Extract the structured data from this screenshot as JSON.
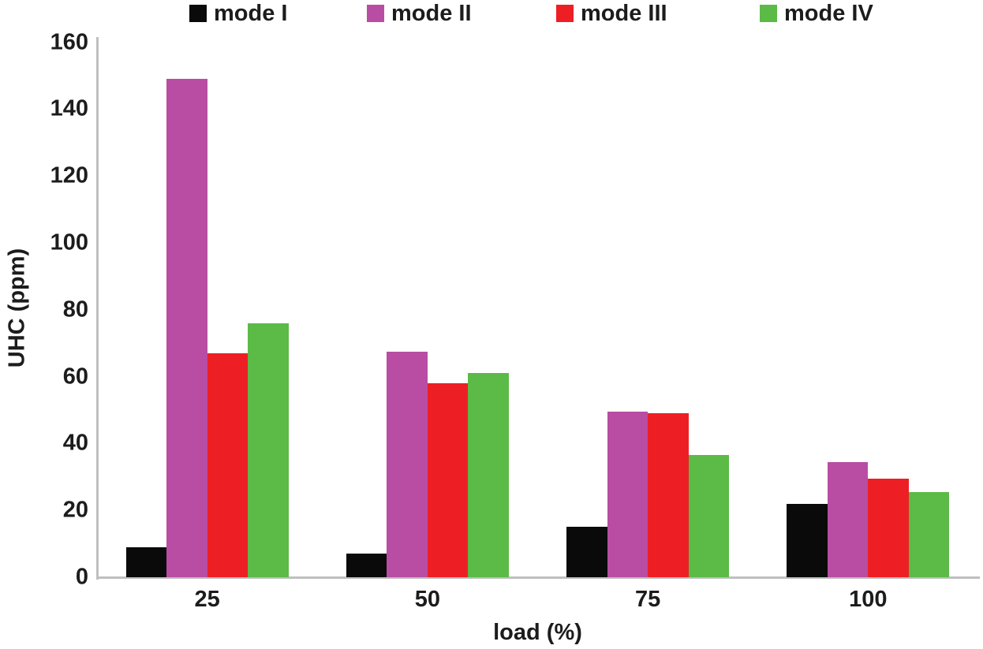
{
  "chart_data": {
    "type": "bar",
    "title": "",
    "categories": [
      "25",
      "50",
      "75",
      "100"
    ],
    "series": [
      {
        "name": "mode I",
        "color": "#0a0a0a",
        "values": [
          9,
          7,
          15,
          22
        ]
      },
      {
        "name": "mode II",
        "color": "#b84da3",
        "values": [
          149,
          67.5,
          49.5,
          34.5
        ]
      },
      {
        "name": "mode III",
        "color": "#ed1f24",
        "values": [
          67,
          58,
          49,
          29.5
        ]
      },
      {
        "name": "mode IV",
        "color": "#5cba47",
        "values": [
          76,
          61,
          36.5,
          25.5
        ]
      }
    ],
    "xlabel": "load (%)",
    "ylabel": "UHC (ppm)",
    "ylim": [
      0,
      160
    ],
    "yticks": [
      0,
      20,
      40,
      60,
      80,
      100,
      120,
      140,
      160
    ],
    "legend_position": "top",
    "grid": false,
    "axis_color": "#bfbfbf",
    "text_color": "#1c1c1c"
  }
}
